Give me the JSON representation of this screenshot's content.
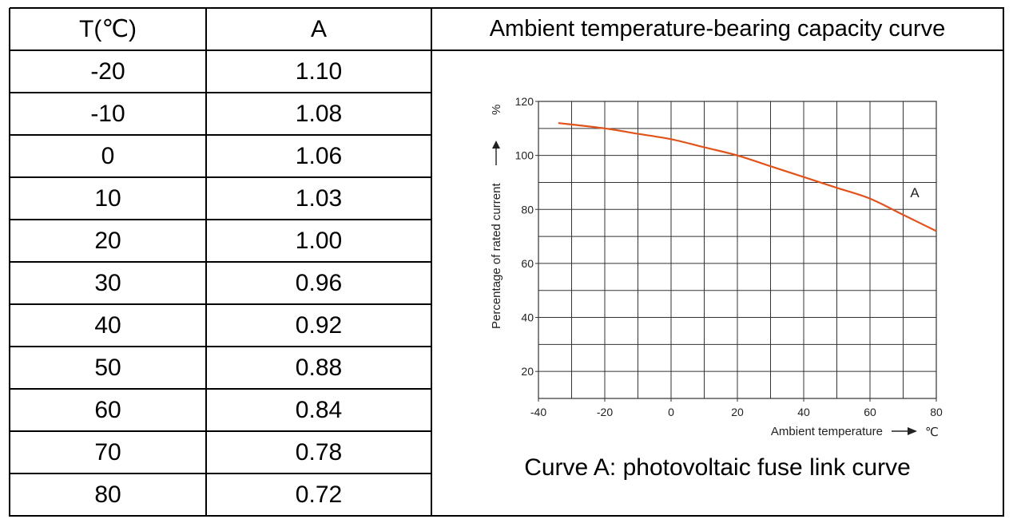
{
  "table": {
    "headers": [
      "T(℃)",
      "A"
    ],
    "rows": [
      [
        "-20",
        "1.10"
      ],
      [
        "-10",
        "1.08"
      ],
      [
        "0",
        "1.06"
      ],
      [
        "10",
        "1.03"
      ],
      [
        "20",
        "1.00"
      ],
      [
        "30",
        "0.96"
      ],
      [
        "40",
        "0.92"
      ],
      [
        "50",
        "0.88"
      ],
      [
        "60",
        "0.84"
      ],
      [
        "70",
        "0.78"
      ],
      [
        "80",
        "0.72"
      ]
    ]
  },
  "chart_title": "Ambient temperature-bearing capacity curve",
  "caption": "Curve A: photovoltaic fuse link curve",
  "chart_data": {
    "type": "line",
    "ylabel": "Percentage of rated current",
    "ylabel_unit": "%",
    "xlabel": "Ambient temperature",
    "xlabel_unit": "℃",
    "xlim": [
      -40,
      80
    ],
    "ylim": [
      10,
      120
    ],
    "x_ticks": [
      -40,
      -20,
      0,
      20,
      40,
      60,
      80
    ],
    "y_ticks": [
      20,
      40,
      60,
      80,
      100,
      120
    ],
    "grid": true,
    "line_color": "#e2531b",
    "series": [
      {
        "name": "A",
        "x": [
          -34,
          -20,
          -10,
          0,
          10,
          20,
          30,
          40,
          50,
          60,
          70,
          80
        ],
        "y": [
          112,
          110,
          108,
          106,
          103,
          100,
          96,
          92,
          88,
          84,
          78,
          72
        ]
      }
    ]
  }
}
